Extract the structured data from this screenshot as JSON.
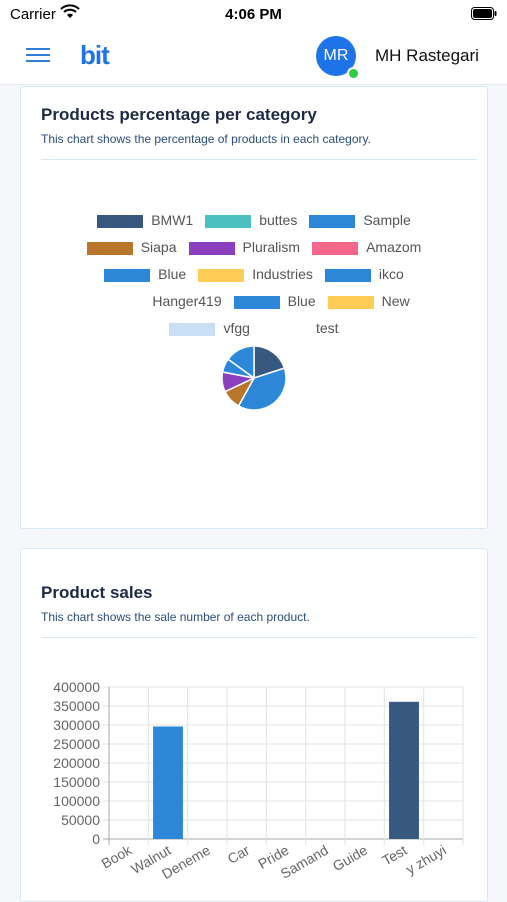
{
  "status_bar": {
    "carrier": "Carrier",
    "time": "4:06 PM"
  },
  "header": {
    "logo": "bit",
    "avatar_initials": "MR",
    "user_name": "MH Rastegari"
  },
  "products_chart": {
    "title": "Products percentage per category",
    "subtitle": "This chart shows the percentage of products in each category.",
    "chart_data": {
      "type": "pie",
      "legend": [
        {
          "label": "BMW1",
          "color": "#37597f"
        },
        {
          "label": "buttes",
          "color": "#4ac0c0"
        },
        {
          "label": "Sample",
          "color": "#2d87d8"
        },
        {
          "label": "Siapa",
          "color": "#b8762a"
        },
        {
          "label": "Pluralism",
          "color": "#8a3fbf"
        },
        {
          "label": "Amazom",
          "color": "#f4668a"
        },
        {
          "label": "Blue",
          "color": "#2d87d8"
        },
        {
          "label": "Industries",
          "color": "#ffcd56"
        },
        {
          "label": "ikco",
          "color": "#2d87d8"
        },
        {
          "label": "Hanger419",
          "color": ""
        },
        {
          "label": "Blue",
          "color": "#2d87d8"
        },
        {
          "label": "New",
          "color": "#ffcd56"
        },
        {
          "label": "vfgg",
          "color": "#c9dff3"
        },
        {
          "label": "test",
          "color": ""
        }
      ],
      "slices": [
        {
          "label": "BMW1",
          "value": 20,
          "color": "#37597f"
        },
        {
          "label": "Sample",
          "value": 38,
          "color": "#2d87d8"
        },
        {
          "label": "Siapa",
          "value": 10,
          "color": "#b8762a"
        },
        {
          "label": "Pluralism",
          "value": 10,
          "color": "#8a3fbf"
        },
        {
          "label": "Blue",
          "value": 7,
          "color": "#2d87d8"
        },
        {
          "label": "ikco",
          "value": 15,
          "color": "#2d87d8"
        }
      ]
    }
  },
  "sales_chart": {
    "title": "Product sales",
    "subtitle": "This chart shows the sale number of each product.",
    "chart_data": {
      "type": "bar",
      "categories": [
        "Book",
        "Walnut",
        "Deneme",
        "Car",
        "Pride",
        "Samand",
        "Guide",
        "Test",
        "y zhuyi"
      ],
      "values": [
        0,
        296000,
        0,
        0,
        0,
        0,
        0,
        361000,
        0
      ],
      "colors": [
        "#2d87d8",
        "#2d87d8",
        "#2d87d8",
        "#2d87d8",
        "#2d87d8",
        "#2d87d8",
        "#2d87d8",
        "#37597f",
        "#2d87d8"
      ],
      "ylim": [
        0,
        400000
      ],
      "yticks": [
        "400000",
        "350000",
        "300000",
        "250000",
        "200000",
        "150000",
        "100000",
        "50000",
        "0"
      ],
      "grid": true
    }
  }
}
